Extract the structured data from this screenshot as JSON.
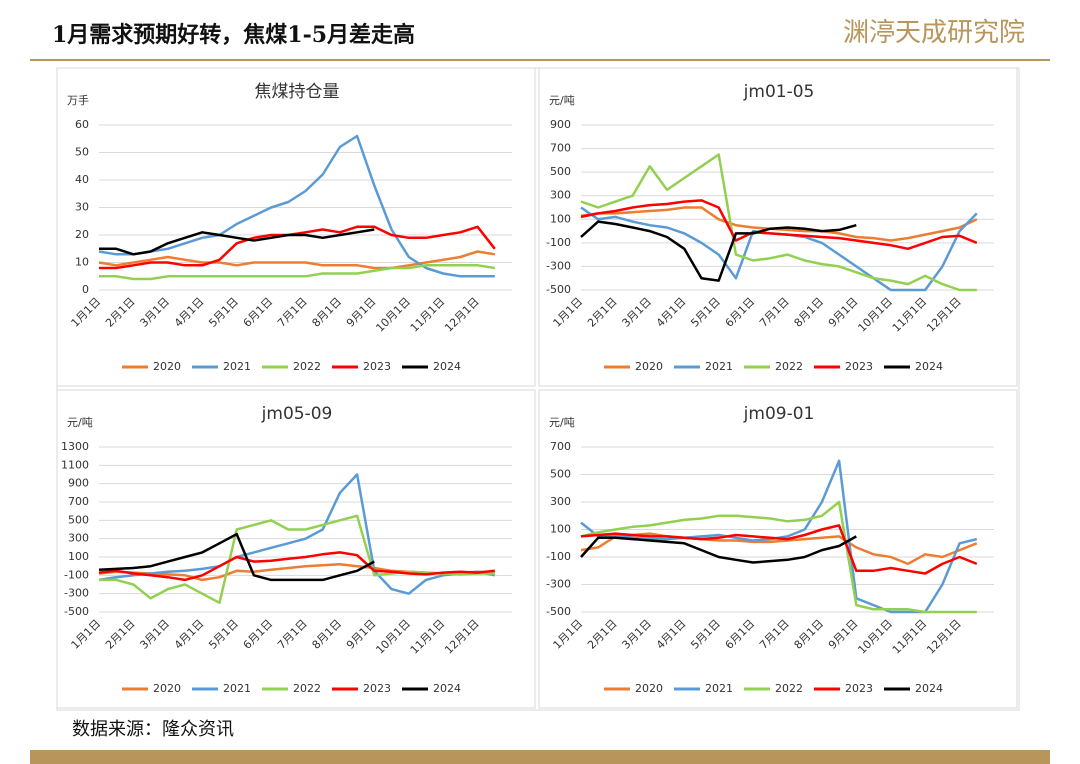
{
  "header": {
    "title": "1月需求预期好转，焦煤1-5月差走高",
    "logo": "渊渟天成研究院"
  },
  "source": "数据来源：隆众资讯",
  "chart_data": [
    {
      "type": "line",
      "title": "焦煤持仓量",
      "y_label": "万手",
      "categories": [
        "1月1日",
        null,
        "2月1日",
        null,
        "3月1日",
        null,
        "4月1日",
        null,
        "5月1日",
        null,
        "6月1日",
        null,
        "7月1日",
        null,
        "8月1日",
        null,
        "9月1日",
        null,
        "10月1日",
        null,
        "11月1日",
        null,
        "12月1日",
        null
      ],
      "ylim": [
        0,
        60
      ],
      "yticks": [
        0,
        10,
        20,
        30,
        40,
        50,
        60
      ],
      "grid": true,
      "legend": "bottom",
      "series": [
        {
          "name": "2020",
          "color": "#ed7d31",
          "values": [
            10,
            9,
            10,
            11,
            12,
            11,
            10,
            10,
            9,
            10,
            10,
            10,
            10,
            9,
            9,
            9,
            8,
            8,
            9,
            10,
            11,
            12,
            14,
            13
          ]
        },
        {
          "name": "2021",
          "color": "#5b9bd5",
          "values": [
            14,
            13,
            13,
            14,
            15,
            17,
            19,
            20,
            24,
            27,
            30,
            32,
            36,
            42,
            52,
            56,
            38,
            22,
            12,
            8,
            6,
            5,
            5,
            5
          ]
        },
        {
          "name": "2022",
          "color": "#92d050",
          "values": [
            5,
            5,
            4,
            4,
            5,
            5,
            5,
            5,
            5,
            5,
            5,
            5,
            5,
            6,
            6,
            6,
            7,
            8,
            8,
            9,
            9,
            9,
            9,
            8
          ]
        },
        {
          "name": "2023",
          "color": "#ff0000",
          "values": [
            8,
            8,
            9,
            10,
            10,
            9,
            9,
            11,
            17,
            19,
            20,
            20,
            21,
            22,
            21,
            23,
            23,
            20,
            19,
            19,
            20,
            21,
            23,
            15
          ]
        },
        {
          "name": "2024",
          "color": "#000000",
          "values": [
            15,
            15,
            13,
            14,
            17,
            19,
            21,
            20,
            19,
            18,
            19,
            20,
            20,
            19,
            20,
            21,
            22,
            null,
            null,
            null,
            null,
            null,
            null,
            null
          ]
        }
      ]
    },
    {
      "type": "line",
      "title": "jm01-05",
      "y_label": "元/吨",
      "categories": [
        "1月1日",
        null,
        "2月1日",
        null,
        "3月1日",
        null,
        "4月1日",
        null,
        "5月1日",
        null,
        "6月1日",
        null,
        "7月1日",
        null,
        "8月1日",
        null,
        "9月1日",
        null,
        "10月1日",
        null,
        "11月1日",
        null,
        "12月1日",
        null
      ],
      "ylim": [
        -500,
        900
      ],
      "yticks": [
        -500,
        -300,
        -100,
        100,
        300,
        500,
        700,
        900
      ],
      "grid": true,
      "legend": "bottom",
      "series": [
        {
          "name": "2020",
          "color": "#ed7d31",
          "values": [
            130,
            150,
            150,
            160,
            170,
            180,
            200,
            200,
            100,
            50,
            30,
            20,
            10,
            0,
            0,
            -20,
            -50,
            -60,
            -80,
            -60,
            -30,
            0,
            30,
            100
          ]
        },
        {
          "name": "2021",
          "color": "#5b9bd5",
          "values": [
            200,
            100,
            120,
            80,
            50,
            30,
            -20,
            -100,
            -200,
            -400,
            0,
            -20,
            -30,
            -50,
            -100,
            -200,
            -300,
            -400,
            -500,
            -500,
            -500,
            -300,
            0,
            150
          ]
        },
        {
          "name": "2022",
          "color": "#92d050",
          "values": [
            250,
            200,
            250,
            300,
            550,
            350,
            450,
            550,
            650,
            -200,
            -250,
            -230,
            -200,
            -250,
            -280,
            -300,
            -350,
            -400,
            -420,
            -450,
            -380,
            -450,
            -500,
            -500
          ]
        },
        {
          "name": "2023",
          "color": "#ff0000",
          "values": [
            120,
            150,
            170,
            200,
            220,
            230,
            250,
            260,
            200,
            -80,
            -10,
            -20,
            -30,
            -40,
            -50,
            -60,
            -80,
            -100,
            -120,
            -150,
            -100,
            -50,
            -40,
            -100
          ]
        },
        {
          "name": "2024",
          "color": "#000000",
          "values": [
            -50,
            80,
            60,
            30,
            0,
            -50,
            -150,
            -400,
            -420,
            -20,
            -20,
            20,
            30,
            20,
            0,
            10,
            50,
            null,
            null,
            null,
            null,
            null,
            null,
            null
          ]
        }
      ]
    },
    {
      "type": "line",
      "title": "jm05-09",
      "y_label": "元/吨",
      "categories": [
        "1月1日",
        null,
        "2月1日",
        null,
        "3月1日",
        null,
        "4月1日",
        null,
        "5月1日",
        null,
        "6月1日",
        null,
        "7月1日",
        null,
        "8月1日",
        null,
        "9月1日",
        null,
        "10月1日",
        null,
        "11月1日",
        null,
        "12月1日",
        null
      ],
      "ylim": [
        -500,
        1300
      ],
      "yticks": [
        -500,
        -300,
        -100,
        100,
        300,
        500,
        700,
        900,
        1100,
        1300
      ],
      "grid": true,
      "legend": "bottom",
      "series": [
        {
          "name": "2020",
          "color": "#ed7d31",
          "values": [
            -80,
            -60,
            -70,
            -80,
            -90,
            -100,
            -150,
            -120,
            -50,
            -60,
            -40,
            -20,
            0,
            10,
            20,
            0,
            -20,
            -50,
            -60,
            -70,
            -80,
            -70,
            -60,
            -70
          ]
        },
        {
          "name": "2021",
          "color": "#5b9bd5",
          "values": [
            -150,
            -120,
            -100,
            -80,
            -60,
            -50,
            -30,
            0,
            100,
            150,
            200,
            250,
            300,
            400,
            800,
            1000,
            -50,
            -250,
            -300,
            -150,
            -100,
            -80,
            -60,
            -100
          ]
        },
        {
          "name": "2022",
          "color": "#92d050",
          "values": [
            -150,
            -150,
            -200,
            -350,
            -250,
            -200,
            -300,
            -400,
            400,
            450,
            500,
            400,
            400,
            450,
            500,
            550,
            -100,
            -80,
            -60,
            -70,
            -80,
            -90,
            -80,
            -80
          ]
        },
        {
          "name": "2023",
          "color": "#ff0000",
          "values": [
            -70,
            -50,
            -80,
            -100,
            -120,
            -150,
            -100,
            0,
            100,
            50,
            60,
            80,
            100,
            130,
            150,
            120,
            -50,
            -60,
            -80,
            -90,
            -70,
            -60,
            -70,
            -50
          ]
        },
        {
          "name": "2024",
          "color": "#000000",
          "values": [
            -40,
            -30,
            -20,
            0,
            50,
            100,
            150,
            250,
            350,
            -100,
            -150,
            -150,
            -150,
            -150,
            -100,
            -50,
            50,
            null,
            null,
            null,
            null,
            null,
            null,
            null
          ]
        }
      ]
    },
    {
      "type": "line",
      "title": "jm09-01",
      "y_label": "元/吨",
      "categories": [
        "1月1日",
        null,
        "2月1日",
        null,
        "3月1日",
        null,
        "4月1日",
        null,
        "5月1日",
        null,
        "6月1日",
        null,
        "7月1日",
        null,
        "8月1日",
        null,
        "9月1日",
        null,
        "10月1日",
        null,
        "11月1日",
        null,
        "12月1日",
        null
      ],
      "ylim": [
        -500,
        700
      ],
      "yticks": [
        -500,
        -300,
        -100,
        100,
        300,
        500,
        700
      ],
      "grid": true,
      "legend": "bottom",
      "series": [
        {
          "name": "2020",
          "color": "#ed7d31",
          "values": [
            -50,
            -30,
            50,
            60,
            70,
            50,
            40,
            30,
            20,
            20,
            10,
            10,
            20,
            30,
            40,
            50,
            -30,
            -80,
            -100,
            -150,
            -80,
            -100,
            -50,
            0
          ]
        },
        {
          "name": "2021",
          "color": "#5b9bd5",
          "values": [
            150,
            50,
            60,
            40,
            30,
            30,
            40,
            50,
            60,
            40,
            20,
            30,
            50,
            100,
            300,
            600,
            -400,
            -450,
            -500,
            -500,
            -500,
            -300,
            0,
            30
          ]
        },
        {
          "name": "2022",
          "color": "#92d050",
          "values": [
            50,
            80,
            100,
            120,
            130,
            150,
            170,
            180,
            200,
            200,
            190,
            180,
            160,
            170,
            200,
            300,
            -450,
            -480,
            -480,
            -480,
            -500,
            -500,
            -500,
            -500
          ]
        },
        {
          "name": "2023",
          "color": "#ff0000",
          "values": [
            50,
            60,
            70,
            60,
            50,
            50,
            40,
            30,
            40,
            60,
            50,
            40,
            30,
            60,
            100,
            130,
            -200,
            -200,
            -180,
            -200,
            -220,
            -150,
            -100,
            -150
          ]
        },
        {
          "name": "2024",
          "color": "#000000",
          "values": [
            -100,
            40,
            40,
            30,
            20,
            10,
            0,
            -50,
            -100,
            -120,
            -140,
            -130,
            -120,
            -100,
            -50,
            -20,
            50,
            null,
            null,
            null,
            null,
            null,
            null,
            null
          ]
        }
      ]
    }
  ]
}
